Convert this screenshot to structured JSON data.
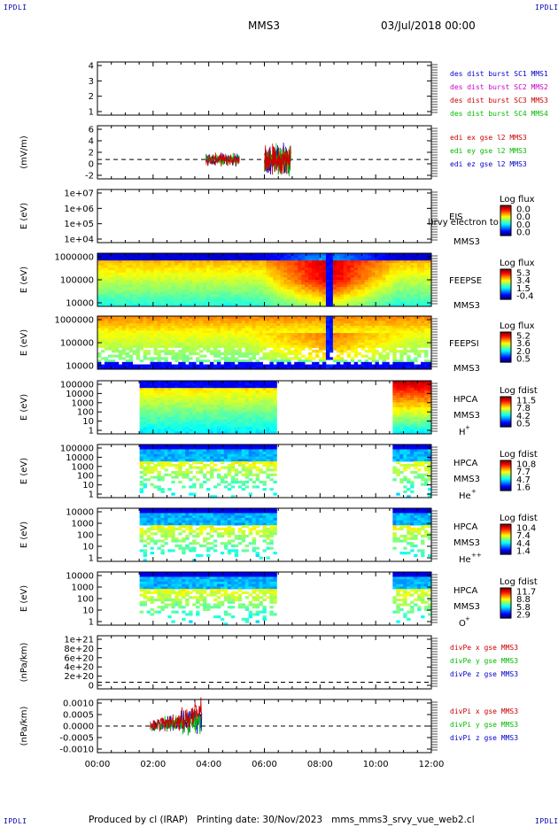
{
  "corners": {
    "tl": "IPDLI",
    "tr": "IPDLI",
    "bl": "IPDLI",
    "br": "IPDLI"
  },
  "header": {
    "spacecraft": "MMS3",
    "datetime": "03/Jul/2018 00:00"
  },
  "footer": {
    "produced_by": "Produced by cl (IRAP)",
    "printing_date": "Printing date: 30/Nov/2023",
    "script": "mms_mms3_srvy_vue_web2.cl"
  },
  "colors": {
    "frame": "#000000",
    "legend_blue": "#0000cc",
    "legend_magenta": "#cc00cc",
    "legend_red": "#cc0000",
    "legend_green": "#00bb00"
  },
  "chart_data": [
    {
      "type": "line",
      "id": "panel1",
      "ylabel": "",
      "ylim": [
        0.5,
        4.6
      ],
      "yticks": [
        "1",
        "2",
        "3",
        "4"
      ],
      "legend": [
        {
          "text": "des dist burst SC1 MMS1",
          "color": "#0000cc"
        },
        {
          "text": "des dist burst SC2 MMS2",
          "color": "#cc00cc"
        },
        {
          "text": "des dist burst SC3 MMS3",
          "color": "#cc0000"
        },
        {
          "text": "des dist burst SC4 MMS4",
          "color": "#00bb00"
        }
      ],
      "series": []
    },
    {
      "type": "line",
      "id": "panel2",
      "ylabel": "(mV/m)",
      "ylim": [
        -4,
        7
      ],
      "yticks": [
        "-2",
        "0",
        "2",
        "4",
        "6"
      ],
      "zero_line": true,
      "legend": [
        {
          "text": "edi ex gse l2 MMS3",
          "color": "#cc0000"
        },
        {
          "text": "edi ey gse l2 MMS3",
          "color": "#00bb00"
        },
        {
          "text": "edi ez gse l2 MMS3",
          "color": "#0000cc"
        }
      ],
      "bursts": [
        {
          "x_start": 3.9,
          "x_end": 5.1,
          "amplitude": 1.2
        },
        {
          "x_start": 6.0,
          "x_end": 6.95,
          "amplitude": 3.0
        }
      ]
    },
    {
      "type": "heatmap",
      "id": "panel3",
      "ylabel": "E (eV)",
      "yticks": [
        "1e+04",
        "1e+05",
        "1e+06",
        "1e+07"
      ],
      "labels": [
        "EIS",
        "MMS3"
      ],
      "overlay_text": "l)rvy electron to",
      "colorbar_title": "Log flux",
      "colorbar_ticks": [
        "0.0",
        "0.0",
        "0.0",
        "0.0"
      ],
      "fill": "empty"
    },
    {
      "type": "heatmap",
      "id": "panel4",
      "ylabel": "E (eV)",
      "yticks": [
        "10000",
        "100000",
        "1000000"
      ],
      "labels": [
        "FEEPSE",
        "MMS3"
      ],
      "colorbar_title": "Log flux",
      "colorbar_ticks": [
        "5.3",
        "3.4",
        "1.5",
        "-0.4"
      ],
      "fill": "feepse"
    },
    {
      "type": "heatmap",
      "id": "panel5",
      "ylabel": "E (eV)",
      "yticks": [
        "10000",
        "100000",
        "1000000"
      ],
      "labels": [
        "FEEPSI",
        "MMS3"
      ],
      "colorbar_title": "Log flux",
      "colorbar_ticks": [
        "5.2",
        "3.6",
        "2.0",
        "0.5"
      ],
      "fill": "feepsi"
    },
    {
      "type": "heatmap",
      "id": "panel6",
      "ylabel": "E (eV)",
      "yticks": [
        "1",
        "10",
        "100",
        "1000",
        "10000",
        "100000"
      ],
      "labels": [
        "HPCA",
        "MMS3"
      ],
      "species": "H",
      "species_sup": "+",
      "colorbar_title": "Log fdist",
      "colorbar_ticks": [
        "11.5",
        "7.8",
        "4.2",
        "0.5"
      ],
      "fill": "hplus",
      "intervals": [
        [
          1.5,
          6.5
        ],
        [
          10.6,
          12.0
        ]
      ]
    },
    {
      "type": "heatmap",
      "id": "panel7",
      "ylabel": "E (eV)",
      "yticks": [
        "1",
        "10",
        "100",
        "1000",
        "10000",
        "100000"
      ],
      "labels": [
        "HPCA",
        "MMS3"
      ],
      "species": "He",
      "species_sup": "+",
      "colorbar_title": "Log fdist",
      "colorbar_ticks": [
        "10.8",
        "7.7",
        "4.7",
        "1.6"
      ],
      "fill": "heavy",
      "intervals": [
        [
          1.5,
          6.5
        ],
        [
          10.6,
          12.0
        ]
      ]
    },
    {
      "type": "heatmap",
      "id": "panel8",
      "ylabel": "E (eV)",
      "yticks": [
        "1",
        "10",
        "100",
        "1000",
        "10000"
      ],
      "labels": [
        "HPCA",
        "MMS3"
      ],
      "species": "He",
      "species_sup": "++",
      "colorbar_title": "Log fdist",
      "colorbar_ticks": [
        "10.4",
        "7.4",
        "4.4",
        "1.4"
      ],
      "fill": "heavy2",
      "intervals": [
        [
          1.5,
          6.5
        ],
        [
          10.6,
          12.0
        ]
      ]
    },
    {
      "type": "heatmap",
      "id": "panel9",
      "ylabel": "E (eV)",
      "yticks": [
        "1",
        "10",
        "100",
        "1000",
        "10000"
      ],
      "labels": [
        "HPCA",
        "MMS3"
      ],
      "species": "O",
      "species_sup": "+",
      "colorbar_title": "Log fdist",
      "colorbar_ticks": [
        "11.7",
        "8.8",
        "5.8",
        "2.9"
      ],
      "fill": "oxygen",
      "intervals": [
        [
          1.5,
          6.5
        ],
        [
          10.6,
          12.0
        ]
      ]
    },
    {
      "type": "line",
      "id": "panel10",
      "ylabel": "(nPa/km)",
      "ylim": [
        -1.5e+20,
        1.05e+21
      ],
      "yticks": [
        "0",
        "2e+20",
        "4e+20",
        "6e+20",
        "8e+20",
        "1e+21"
      ],
      "zero_line": true,
      "legend": [
        {
          "text": "divPe x gse MMS3",
          "color": "#cc0000"
        },
        {
          "text": "divPe y gse MMS3",
          "color": "#00bb00"
        },
        {
          "text": "divPe z gse MMS3",
          "color": "#0000cc"
        }
      ],
      "series": []
    },
    {
      "type": "line",
      "id": "panel11",
      "ylabel": "(nPa/km)",
      "ylim": [
        -0.0013,
        0.0013
      ],
      "yticks": [
        "-0.0010",
        "-0.0005",
        "0.0000",
        "0.0005",
        "0.0010"
      ],
      "zero_line": true,
      "legend": [
        {
          "text": "divPi x gse MMS3",
          "color": "#cc0000"
        },
        {
          "text": "divPi y gse MMS3",
          "color": "#00bb00"
        },
        {
          "text": "divPi z gse MMS3",
          "color": "#0000cc"
        }
      ],
      "bursts": [
        {
          "x_start": 1.9,
          "x_end": 3.75,
          "amplitude": 0.0004,
          "rising": true
        }
      ]
    }
  ],
  "x_axis": {
    "range": [
      0,
      12
    ],
    "ticks": [
      0,
      2,
      4,
      6,
      8,
      10,
      12
    ],
    "tick_labels": [
      "00:00",
      "02:00",
      "04:00",
      "06:00",
      "08:00",
      "10:00",
      "12:00"
    ]
  }
}
